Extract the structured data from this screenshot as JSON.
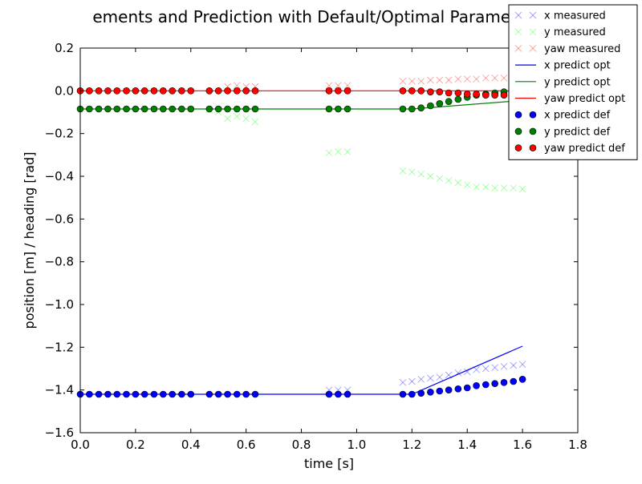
{
  "chart_data": {
    "type": "scatter",
    "title": "ements and Prediction with Default/Optimal Parameter V",
    "xlabel": "time [s]",
    "ylabel": "position [m] / heading [rad]",
    "xlim": [
      0.0,
      1.8
    ],
    "ylim": [
      -1.6,
      0.2
    ],
    "xticks": [
      0.0,
      0.2,
      0.4,
      0.6,
      0.8,
      1.0,
      1.2,
      1.4,
      1.6,
      1.8
    ],
    "yticks": [
      0.2,
      0.0,
      -0.2,
      -0.4,
      -0.6,
      -0.8,
      -1.0,
      -1.2,
      -1.4,
      -1.6
    ],
    "xtick_labels": [
      "0.0",
      "0.2",
      "0.4",
      "0.6",
      "0.8",
      "1.0",
      "1.2",
      "1.4",
      "1.6",
      "1.8"
    ],
    "ytick_labels": [
      "0.2",
      "0.0",
      "−0.2",
      "−0.4",
      "−0.6",
      "−0.8",
      "−1.0",
      "−1.2",
      "−1.4",
      "−1.6"
    ],
    "grid": false,
    "legend_position": "top-right",
    "series": [
      {
        "name": "x measured",
        "kind": "cross",
        "color": "#0000ff",
        "x": [
          0.9,
          0.933,
          0.967,
          1.167,
          1.2,
          1.233,
          1.267,
          1.3,
          1.333,
          1.367,
          1.4,
          1.433,
          1.467,
          1.5,
          1.533,
          1.567,
          1.6
        ],
        "y": [
          -1.4,
          -1.4,
          -1.4,
          -1.365,
          -1.36,
          -1.35,
          -1.345,
          -1.34,
          -1.33,
          -1.32,
          -1.315,
          -1.305,
          -1.3,
          -1.295,
          -1.29,
          -1.285,
          -1.28
        ]
      },
      {
        "name": "y measured",
        "kind": "cross",
        "color": "#00ff00",
        "x": [
          0.467,
          0.5,
          0.533,
          0.567,
          0.6,
          0.633,
          0.9,
          0.933,
          0.967,
          1.167,
          1.2,
          1.233,
          1.267,
          1.3,
          1.333,
          1.367,
          1.4,
          1.433,
          1.467,
          1.5,
          1.533,
          1.567,
          1.6
        ],
        "y": [
          -0.09,
          -0.1,
          -0.13,
          -0.12,
          -0.13,
          -0.145,
          -0.29,
          -0.285,
          -0.285,
          -0.375,
          -0.38,
          -0.39,
          -0.4,
          -0.41,
          -0.42,
          -0.43,
          -0.44,
          -0.45,
          -0.45,
          -0.455,
          -0.455,
          -0.455,
          -0.46
        ]
      },
      {
        "name": "yaw measured",
        "kind": "cross",
        "color": "#ff0000",
        "x": [
          0.533,
          0.567,
          0.6,
          0.633,
          0.9,
          0.933,
          0.967,
          1.167,
          1.2,
          1.233,
          1.267,
          1.3,
          1.333,
          1.367,
          1.4,
          1.433,
          1.467,
          1.5,
          1.533,
          1.567,
          1.6
        ],
        "y": [
          0.02,
          0.025,
          0.02,
          0.02,
          0.025,
          0.025,
          0.025,
          0.045,
          0.045,
          0.045,
          0.05,
          0.05,
          0.05,
          0.055,
          0.055,
          0.055,
          0.06,
          0.06,
          0.06,
          0.065,
          0.065
        ]
      },
      {
        "name": "x predict opt",
        "kind": "line",
        "color": "#0000ff",
        "x": [
          0.0,
          1.2,
          1.6
        ],
        "y": [
          -1.42,
          -1.42,
          -1.195
        ]
      },
      {
        "name": "y predict opt",
        "kind": "line",
        "color": "#008000",
        "x": [
          0.0,
          1.2,
          1.6
        ],
        "y": [
          -0.085,
          -0.085,
          -0.045
        ]
      },
      {
        "name": "yaw predict opt",
        "kind": "line",
        "color": "#ff0000",
        "x": [
          0.0,
          1.6
        ],
        "y": [
          0.0,
          0.0
        ]
      },
      {
        "name": "x predict def",
        "kind": "dot",
        "color": "#0000ff",
        "x": [
          0.0,
          0.033,
          0.067,
          0.1,
          0.133,
          0.167,
          0.2,
          0.233,
          0.267,
          0.3,
          0.333,
          0.367,
          0.4,
          0.467,
          0.5,
          0.533,
          0.567,
          0.6,
          0.633,
          0.9,
          0.933,
          0.967,
          1.167,
          1.2,
          1.233,
          1.267,
          1.3,
          1.333,
          1.367,
          1.4,
          1.433,
          1.467,
          1.5,
          1.533,
          1.567,
          1.6
        ],
        "y": [
          -1.42,
          -1.42,
          -1.42,
          -1.42,
          -1.42,
          -1.42,
          -1.42,
          -1.42,
          -1.42,
          -1.42,
          -1.42,
          -1.42,
          -1.42,
          -1.42,
          -1.42,
          -1.42,
          -1.42,
          -1.42,
          -1.42,
          -1.42,
          -1.42,
          -1.42,
          -1.42,
          -1.42,
          -1.415,
          -1.41,
          -1.405,
          -1.4,
          -1.395,
          -1.39,
          -1.38,
          -1.375,
          -1.37,
          -1.365,
          -1.36,
          -1.35
        ]
      },
      {
        "name": "y predict def",
        "kind": "dot",
        "color": "#008000",
        "x": [
          0.0,
          0.033,
          0.067,
          0.1,
          0.133,
          0.167,
          0.2,
          0.233,
          0.267,
          0.3,
          0.333,
          0.367,
          0.4,
          0.467,
          0.5,
          0.533,
          0.567,
          0.6,
          0.633,
          0.9,
          0.933,
          0.967,
          1.167,
          1.2,
          1.233,
          1.267,
          1.3,
          1.333,
          1.367,
          1.4,
          1.433,
          1.467,
          1.5,
          1.533,
          1.567,
          1.6
        ],
        "y": [
          -0.085,
          -0.085,
          -0.085,
          -0.085,
          -0.085,
          -0.085,
          -0.085,
          -0.085,
          -0.085,
          -0.085,
          -0.085,
          -0.085,
          -0.085,
          -0.085,
          -0.085,
          -0.085,
          -0.085,
          -0.085,
          -0.085,
          -0.085,
          -0.085,
          -0.085,
          -0.085,
          -0.085,
          -0.08,
          -0.07,
          -0.06,
          -0.05,
          -0.04,
          -0.03,
          -0.02,
          -0.015,
          -0.01,
          -0.005,
          0.0,
          0.005
        ]
      },
      {
        "name": "yaw predict def",
        "kind": "dot",
        "color": "#ff0000",
        "x": [
          0.0,
          0.033,
          0.067,
          0.1,
          0.133,
          0.167,
          0.2,
          0.233,
          0.267,
          0.3,
          0.333,
          0.367,
          0.4,
          0.467,
          0.5,
          0.533,
          0.567,
          0.6,
          0.633,
          0.9,
          0.933,
          0.967,
          1.167,
          1.2,
          1.233,
          1.267,
          1.3,
          1.333,
          1.367,
          1.4,
          1.433,
          1.467,
          1.5,
          1.533,
          1.567,
          1.6
        ],
        "y": [
          0.0,
          0.0,
          0.0,
          0.0,
          0.0,
          0.0,
          0.0,
          0.0,
          0.0,
          0.0,
          0.0,
          0.0,
          0.0,
          0.0,
          0.0,
          0.0,
          0.0,
          0.0,
          0.0,
          0.0,
          0.0,
          0.0,
          0.0,
          0.0,
          0.0,
          -0.005,
          -0.005,
          -0.01,
          -0.01,
          -0.015,
          -0.015,
          -0.02,
          -0.02,
          -0.02,
          -0.02,
          -0.02
        ]
      }
    ]
  }
}
